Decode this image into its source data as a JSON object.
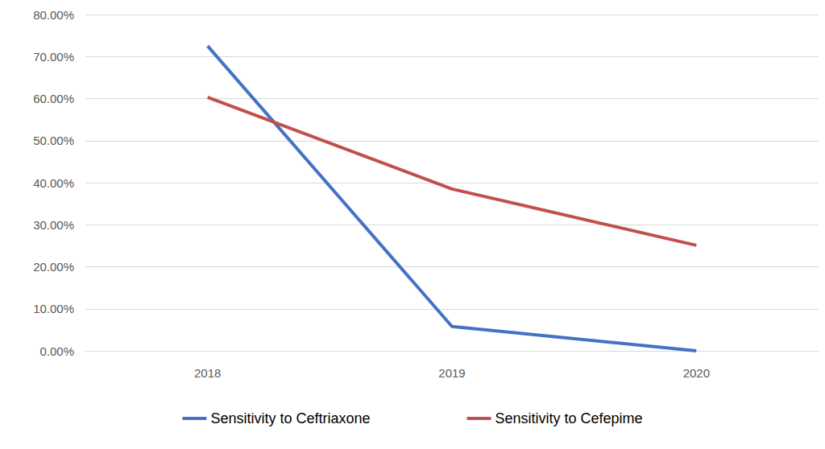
{
  "chart_data": {
    "type": "line",
    "categories": [
      "2018",
      "2019",
      "2020"
    ],
    "series": [
      {
        "name": "Sensitivity to Ceftriaxone",
        "color": "#4472c4",
        "values": [
          72.5,
          5.8,
          0
        ]
      },
      {
        "name": "Sensitivity to Cefepime",
        "color": "#c0504d",
        "values": [
          60.3,
          38.5,
          25.1
        ]
      }
    ],
    "ylim": [
      0,
      80
    ],
    "yticks": [
      {
        "value": 0,
        "label": "0.00%"
      },
      {
        "value": 10,
        "label": "10.00%"
      },
      {
        "value": 20,
        "label": "20.00%"
      },
      {
        "value": 30,
        "label": "30.00%"
      },
      {
        "value": 40,
        "label": "40.00%"
      },
      {
        "value": 50,
        "label": "50.00%"
      },
      {
        "value": 60,
        "label": "60.00%"
      },
      {
        "value": 70,
        "label": "70.00%"
      },
      {
        "value": 80,
        "label": "80.00%"
      }
    ],
    "grid": true,
    "legend": "bottom",
    "marker": "none"
  }
}
